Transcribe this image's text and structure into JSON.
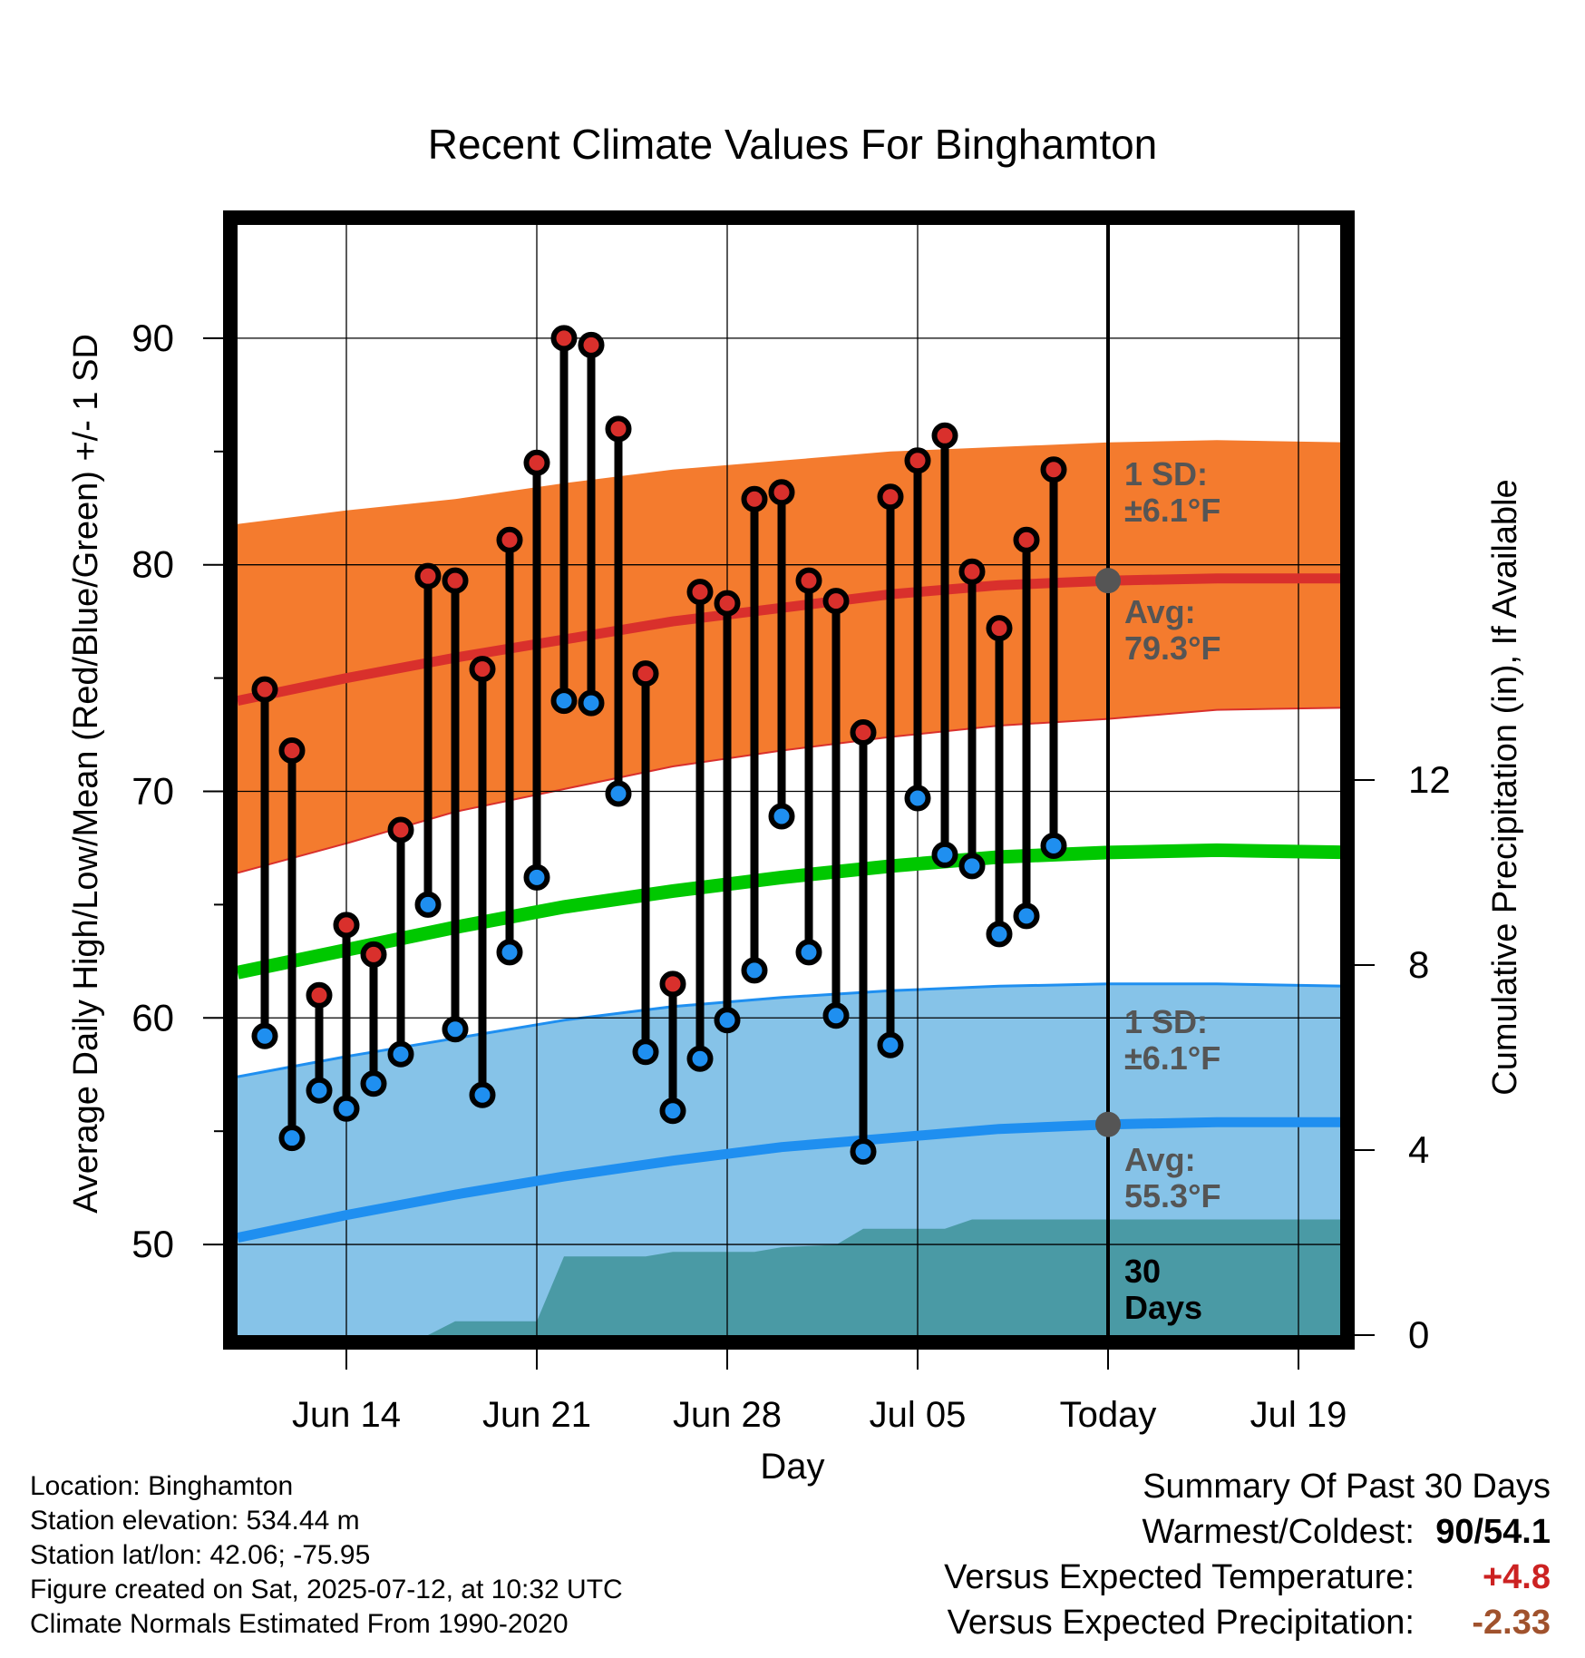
{
  "chart_data": {
    "type": "line",
    "title": "Recent Climate Values For Binghamton",
    "xlabel": "Day",
    "ylabel_left": "Average Daily High/Low/Mean (Red/Blue/Green) +/- 1 SD",
    "ylabel_right": "Cumulative Precipitation (in), If Available",
    "ylim": [
      46,
      95
    ],
    "y2lim": [
      0,
      24
    ],
    "yticks": [
      "50",
      "60",
      "70",
      "80",
      "90"
    ],
    "y2ticks": [
      "0",
      "4",
      "8",
      "12"
    ],
    "x_date_range": [
      "2025-06-10",
      "2025-07-21"
    ],
    "xticks": [
      {
        "date": "2025-06-14",
        "label": "Jun 14"
      },
      {
        "date": "2025-06-21",
        "label": "Jun 21"
      },
      {
        "date": "2025-06-28",
        "label": "Jun 28"
      },
      {
        "date": "2025-07-05",
        "label": "Jul 05"
      },
      {
        "date": "2025-07-12",
        "label": "Today"
      },
      {
        "date": "2025-07-19",
        "label": "Jul 19"
      }
    ],
    "today_date": "2025-07-12",
    "grid": true,
    "normals": {
      "dates": [
        "2025-06-10",
        "2025-06-14",
        "2025-06-18",
        "2025-06-22",
        "2025-06-26",
        "2025-06-30",
        "2025-07-04",
        "2025-07-08",
        "2025-07-12",
        "2025-07-16",
        "2025-07-21"
      ],
      "high_mean": [
        74.0,
        75.0,
        75.9,
        76.7,
        77.5,
        78.1,
        78.7,
        79.1,
        79.3,
        79.4,
        79.4
      ],
      "high_upper": [
        81.8,
        82.4,
        82.9,
        83.6,
        84.2,
        84.6,
        85.0,
        85.2,
        85.4,
        85.5,
        85.4
      ],
      "high_lower": [
        66.4,
        67.7,
        69.1,
        70.1,
        71.1,
        71.8,
        72.4,
        72.9,
        73.2,
        73.6,
        73.7
      ],
      "mean": [
        62.0,
        63.0,
        64.0,
        64.9,
        65.6,
        66.2,
        66.7,
        67.1,
        67.3,
        67.4,
        67.3
      ],
      "low_mean": [
        50.3,
        51.3,
        52.2,
        53.0,
        53.7,
        54.3,
        54.7,
        55.1,
        55.3,
        55.4,
        55.4
      ],
      "low_upper": [
        57.4,
        58.3,
        59.1,
        59.9,
        60.5,
        60.9,
        61.2,
        61.4,
        61.5,
        61.5,
        61.4
      ],
      "low_lower": [
        46.0,
        46.0,
        46.0,
        46.0,
        46.0,
        46.0,
        46.0,
        46.0,
        46.0,
        46.0,
        46.0
      ]
    },
    "series": [
      {
        "name": "High",
        "dates": [
          "2025-06-11",
          "2025-06-12",
          "2025-06-13",
          "2025-06-14",
          "2025-06-15",
          "2025-06-16",
          "2025-06-17",
          "2025-06-18",
          "2025-06-19",
          "2025-06-20",
          "2025-06-21",
          "2025-06-22",
          "2025-06-23",
          "2025-06-24",
          "2025-06-25",
          "2025-06-26",
          "2025-06-27",
          "2025-06-28",
          "2025-06-29",
          "2025-06-30",
          "2025-07-01",
          "2025-07-02",
          "2025-07-03",
          "2025-07-04",
          "2025-07-05",
          "2025-07-06",
          "2025-07-07",
          "2025-07-08",
          "2025-07-09",
          "2025-07-10",
          "2025-07-11"
        ],
        "values": [
          74.5,
          71.8,
          61.0,
          64.1,
          62.8,
          68.3,
          79.5,
          79.3,
          75.4,
          81.1,
          84.5,
          90.0,
          89.7,
          86.0,
          75.2,
          61.5,
          78.8,
          78.3,
          82.9,
          83.2,
          79.3,
          78.4,
          72.6,
          83.0,
          84.6,
          85.7,
          79.7,
          77.2,
          81.1,
          84.2,
          null
        ]
      },
      {
        "name": "Low",
        "dates": [
          "2025-06-11",
          "2025-06-12",
          "2025-06-13",
          "2025-06-14",
          "2025-06-15",
          "2025-06-16",
          "2025-06-17",
          "2025-06-18",
          "2025-06-19",
          "2025-06-20",
          "2025-06-21",
          "2025-06-22",
          "2025-06-23",
          "2025-06-24",
          "2025-06-25",
          "2025-06-26",
          "2025-06-27",
          "2025-06-28",
          "2025-06-29",
          "2025-06-30",
          "2025-07-01",
          "2025-07-02",
          "2025-07-03",
          "2025-07-04",
          "2025-07-05",
          "2025-07-06",
          "2025-07-07",
          "2025-07-08",
          "2025-07-09",
          "2025-07-10",
          "2025-07-11"
        ],
        "values": [
          59.2,
          54.7,
          56.8,
          56.0,
          57.1,
          58.4,
          65.0,
          59.5,
          56.6,
          62.9,
          66.2,
          74.0,
          73.9,
          69.9,
          58.5,
          55.9,
          58.2,
          59.9,
          62.1,
          68.9,
          62.9,
          60.1,
          54.1,
          58.8,
          69.7,
          67.2,
          66.7,
          63.7,
          64.5,
          67.6,
          null
        ]
      }
    ],
    "precipitation": {
      "dates": [
        "2025-06-16",
        "2025-06-17",
        "2025-06-18",
        "2025-06-21",
        "2025-06-22",
        "2025-06-25",
        "2025-06-26",
        "2025-06-29",
        "2025-06-30",
        "2025-07-02",
        "2025-07-03",
        "2025-07-06",
        "2025-07-07",
        "2025-07-12",
        "2025-07-21"
      ],
      "values": [
        0.0,
        0.0,
        0.3,
        0.3,
        1.7,
        1.7,
        1.8,
        1.8,
        1.9,
        1.95,
        2.3,
        2.3,
        2.5,
        2.5,
        2.5
      ]
    },
    "colors": {
      "high": "#d9302c",
      "low": "#1f8ff0",
      "mean": "#00c800",
      "high_band": "#f47b2e",
      "low_band": "#86c3e8",
      "precip": "#4a9aa5",
      "today_marker": "#555555"
    },
    "annotations": {
      "high_sd": [
        "1 SD:",
        "±6.1°F"
      ],
      "high_avg": [
        "Avg:",
        "79.3°F"
      ],
      "low_sd": [
        "1 SD:",
        "±6.1°F"
      ],
      "low_avg": [
        "Avg:",
        "55.3°F"
      ],
      "period": [
        "30",
        "Days"
      ]
    }
  },
  "station_info": [
    "Location: Binghamton",
    "Station elevation: 534.44 m",
    "Station lat/lon: 42.06; -75.95",
    "Figure created on Sat, 2025-07-12, at 10:32 UTC",
    "Climate Normals Estimated From 1990-2020"
  ],
  "summary": {
    "title": "Summary Of Past 30 Days",
    "rows": [
      {
        "label": "Warmest/Coldest:",
        "value": "90/54.1",
        "color": "#000000"
      },
      {
        "label": "Versus Expected Temperature:",
        "value": "+4.8",
        "color": "#cc2222"
      },
      {
        "label": "Versus Expected Precipitation:",
        "value": "-2.33",
        "color": "#a0522d"
      }
    ]
  }
}
